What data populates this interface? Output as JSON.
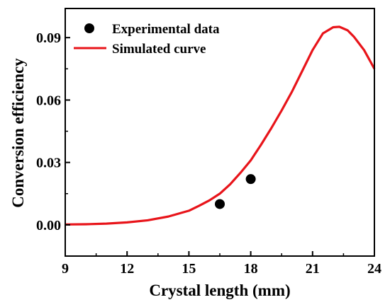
{
  "chart_data": {
    "type": "line",
    "xlabel": "Crystal length (mm)",
    "ylabel": "Conversion efficiency",
    "xlim": [
      9,
      24
    ],
    "ylim": [
      -0.015,
      0.104
    ],
    "x_ticks": [
      9,
      12,
      15,
      18,
      21,
      24
    ],
    "y_ticks": [
      0.0,
      0.03,
      0.06,
      0.09
    ],
    "x_tick_labels": [
      "9",
      "12",
      "15",
      "18",
      "21",
      "24"
    ],
    "y_tick_labels": [
      "0.00",
      "0.03",
      "0.06",
      "0.09"
    ],
    "grid": false,
    "legend_position": "top-left",
    "series": [
      {
        "name": "Experimental data",
        "kind": "scatter",
        "color": "#000000",
        "x": [
          16.5,
          18.0
        ],
        "y": [
          0.01,
          0.022
        ]
      },
      {
        "name": "Simulated curve",
        "kind": "line",
        "color": "#e8141a",
        "x": [
          9,
          10,
          11,
          12,
          13,
          14,
          15,
          15.5,
          16,
          16.5,
          17,
          17.5,
          18,
          18.5,
          19,
          19.5,
          20,
          20.5,
          21,
          21.5,
          22,
          22.3,
          22.7,
          23,
          23.5,
          24
        ],
        "y": [
          0.0002,
          0.0003,
          0.0006,
          0.0012,
          0.0022,
          0.004,
          0.0068,
          0.0092,
          0.0118,
          0.015,
          0.0195,
          0.025,
          0.031,
          0.0385,
          0.0465,
          0.055,
          0.064,
          0.074,
          0.084,
          0.092,
          0.095,
          0.0952,
          0.0935,
          0.0905,
          0.084,
          0.075
        ]
      }
    ]
  }
}
